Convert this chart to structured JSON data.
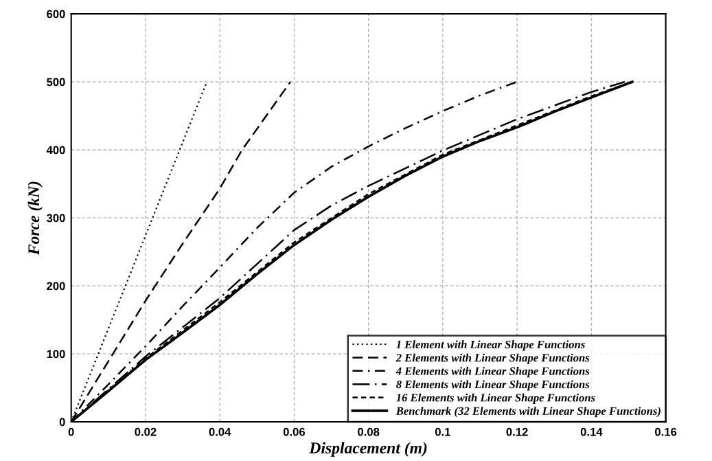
{
  "chart_data": {
    "type": "line",
    "xlabel": "Displacement (m)",
    "ylabel": "Force (kN)",
    "xlim": [
      0,
      0.16
    ],
    "xticks": [
      0,
      0.02,
      0.04,
      0.06,
      0.08,
      0.1,
      0.12,
      0.14,
      0.16
    ],
    "ylim": [
      0,
      600
    ],
    "yticks": [
      0,
      100,
      200,
      300,
      400,
      500,
      600
    ],
    "grid": true,
    "legend": "bottom right",
    "marker": "none",
    "series": [
      {
        "name": "1 Element with Linear Shape Functions",
        "color": "#000000",
        "line_style": "dotted",
        "x": [
          0,
          0.0365
        ],
        "values": [
          0,
          500
        ]
      },
      {
        "name": "2 Elements with Linear Shape Functions",
        "color": "#000000",
        "line_style": "dashed",
        "x": [
          0,
          0.02,
          0.03,
          0.04,
          0.046,
          0.059
        ],
        "values": [
          0,
          178,
          262,
          343,
          400,
          500
        ]
      },
      {
        "name": "4 Elements with Linear Shape Functions",
        "color": "#000000",
        "line_style": "dashdot",
        "x": [
          0,
          0.01,
          0.02,
          0.03,
          0.04,
          0.05,
          0.06,
          0.07,
          0.08,
          0.09,
          0.1,
          0.11,
          0.12
        ],
        "values": [
          0,
          55,
          111,
          170,
          227,
          285,
          337,
          375,
          405,
          432,
          457,
          480,
          500
        ]
      },
      {
        "name": "8 Elements with Linear Shape Functions",
        "color": "#000000",
        "line_style": "longdashdot",
        "x": [
          0,
          0.02,
          0.04,
          0.05,
          0.06,
          0.07,
          0.08,
          0.1,
          0.12,
          0.14,
          0.149
        ],
        "values": [
          0,
          96,
          182,
          232,
          282,
          318,
          347,
          399,
          445,
          485,
          500
        ]
      },
      {
        "name": "16 Elements with Linear Shape Functions",
        "color": "#000000",
        "line_style": "shortdashed",
        "x": [
          0,
          0.02,
          0.04,
          0.06,
          0.08,
          0.1,
          0.12,
          0.14,
          0.151
        ],
        "values": [
          0,
          93,
          176,
          264,
          335,
          393,
          436,
          479,
          500
        ]
      },
      {
        "name": "Benchmark (32 Elements with Linear Shape Functions)",
        "color": "#000000",
        "line_style": "solid",
        "x": [
          0,
          0.01,
          0.02,
          0.03,
          0.04,
          0.05,
          0.06,
          0.07,
          0.08,
          0.09,
          0.1,
          0.11,
          0.12,
          0.13,
          0.14,
          0.151
        ],
        "values": [
          0,
          45,
          91,
          131,
          172,
          217,
          260,
          297,
          331,
          362,
          390,
          413,
          433,
          456,
          477,
          500
        ]
      }
    ]
  }
}
